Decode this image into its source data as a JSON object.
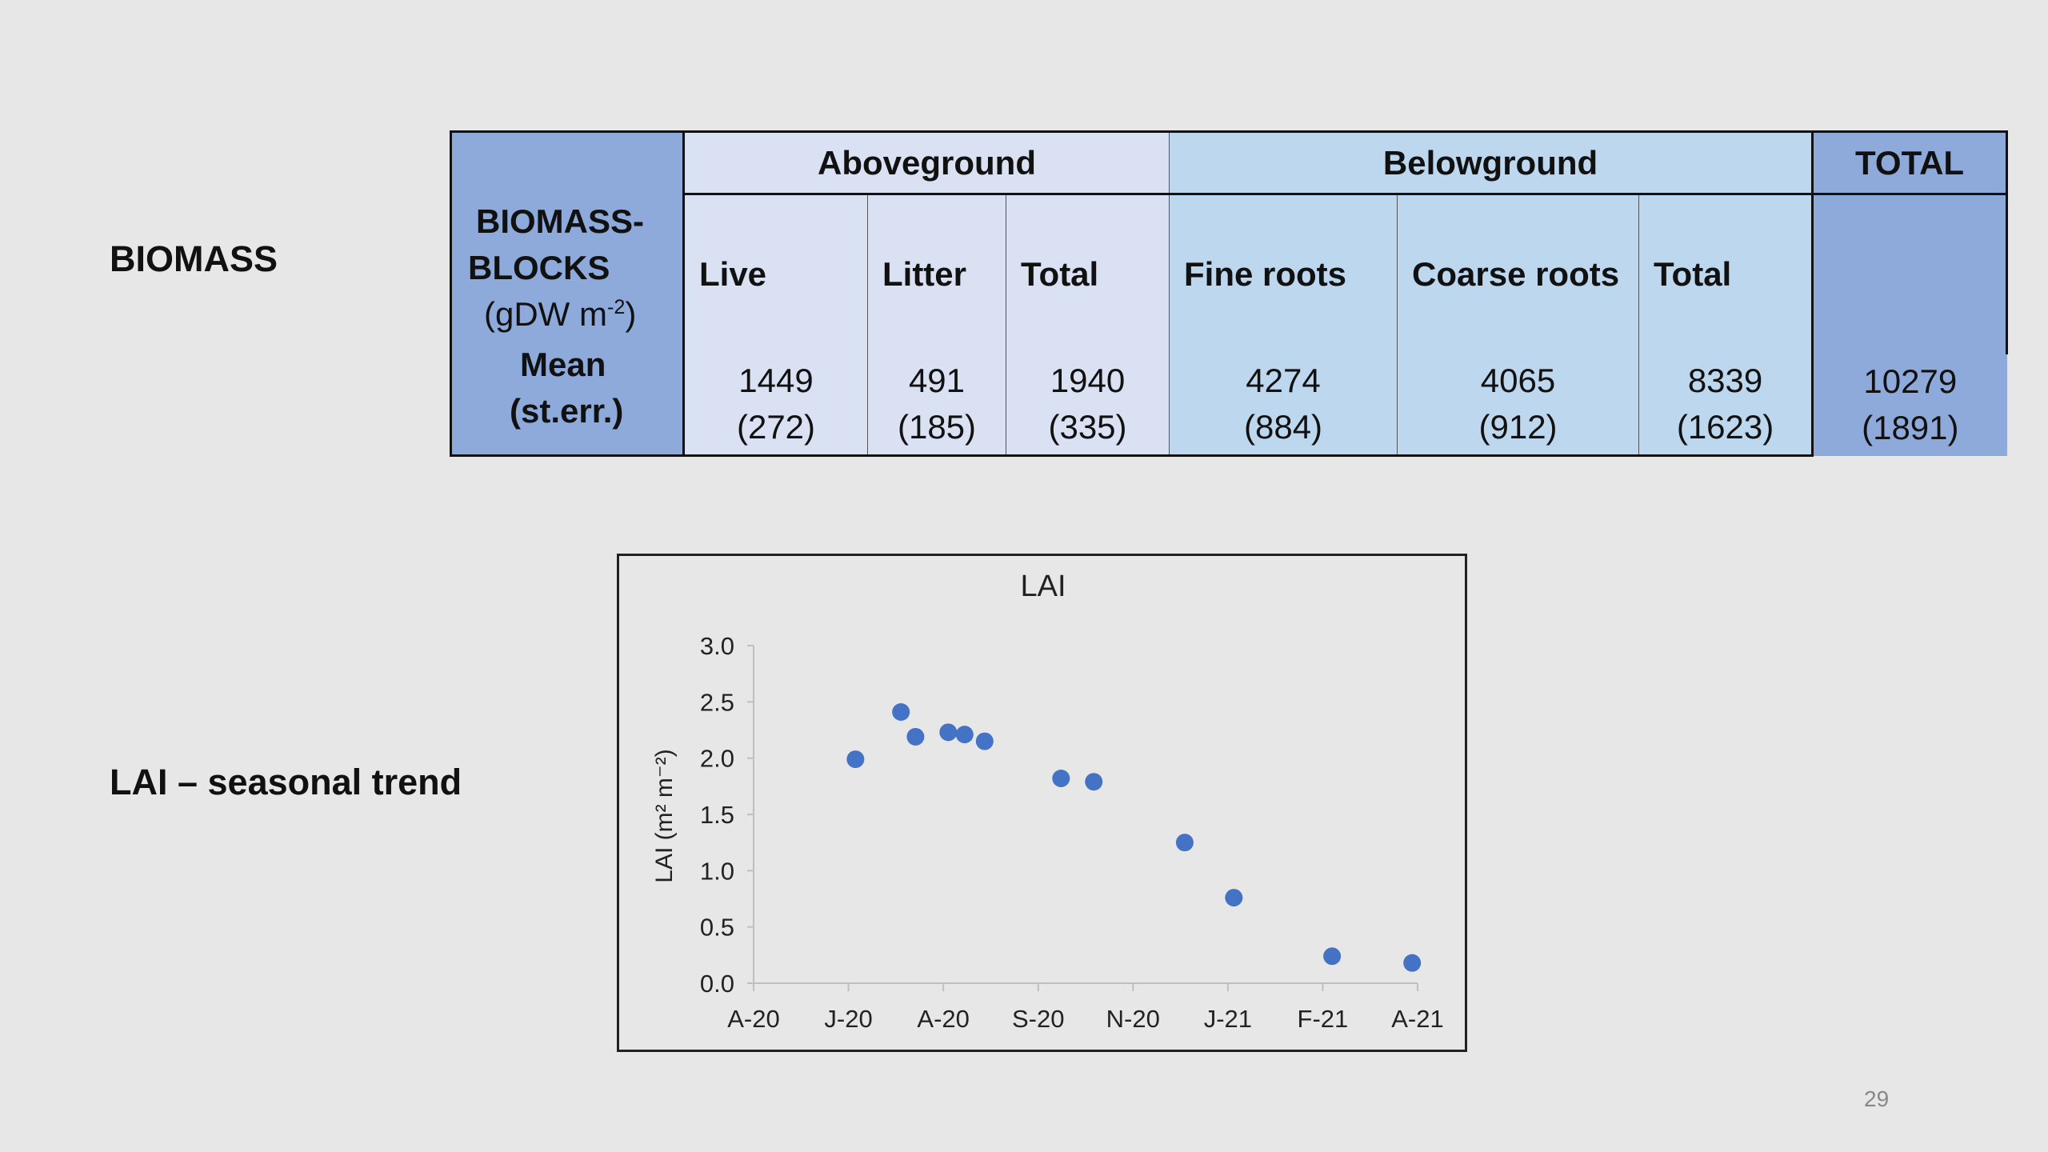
{
  "labels": {
    "biomass": "BIOMASS",
    "lai": "LAI – seasonal trend"
  },
  "table": {
    "row_label_line1": "BIOMASS-",
    "row_label_line2": "BLOCKS",
    "row_label_unit_pre": "(gDW m",
    "row_label_unit_sup": "-2",
    "row_label_unit_post": ")",
    "mean_label": "Mean",
    "sterr_label": "(st.err.)",
    "groups": {
      "above": "Aboveground",
      "below": "Belowground",
      "total": "TOTAL"
    },
    "columns": [
      {
        "name": "Live",
        "mean": "1449",
        "sterr": "(272)"
      },
      {
        "name": "Litter",
        "mean": "491",
        "sterr": "(185)"
      },
      {
        "name": "Total",
        "mean": "1940",
        "sterr": "(335)"
      },
      {
        "name": "Fine roots",
        "mean": "4274",
        "sterr": "(884)"
      },
      {
        "name": "Coarse roots",
        "mean": "4065",
        "sterr": "(912)"
      },
      {
        "name": "Total",
        "mean": "8339",
        "sterr": "(1623)"
      },
      {
        "name": "",
        "mean": "10279",
        "sterr": "(1891)"
      }
    ]
  },
  "chart_data": {
    "type": "scatter",
    "title": "LAI",
    "ylabel": "LAI (m² m⁻²)",
    "xlabel": "",
    "x_ticks": [
      "A-20",
      "J-20",
      "A-20",
      "S-20",
      "N-20",
      "J-21",
      "F-21",
      "A-21"
    ],
    "y_ticks": [
      "0.0",
      "0.5",
      "1.0",
      "1.5",
      "2.0",
      "2.5",
      "3.0"
    ],
    "ylim": [
      0,
      3
    ],
    "xlim": [
      "2020-04-01",
      "2021-04-01"
    ],
    "grid": false,
    "marker_color": "#4472c4",
    "series": [
      {
        "points": [
          {
            "x": "2020-05-27",
            "y": 1.99
          },
          {
            "x": "2020-06-21",
            "y": 2.41
          },
          {
            "x": "2020-06-29",
            "y": 2.19
          },
          {
            "x": "2020-07-17",
            "y": 2.23
          },
          {
            "x": "2020-07-26",
            "y": 2.21
          },
          {
            "x": "2020-08-06",
            "y": 2.15
          },
          {
            "x": "2020-09-17",
            "y": 1.82
          },
          {
            "x": "2020-10-05",
            "y": 1.79
          },
          {
            "x": "2020-11-24",
            "y": 1.25
          },
          {
            "x": "2020-12-21",
            "y": 0.76
          },
          {
            "x": "2021-02-13",
            "y": 0.24
          },
          {
            "x": "2021-03-29",
            "y": 0.18
          }
        ]
      }
    ]
  },
  "page_number": "29"
}
